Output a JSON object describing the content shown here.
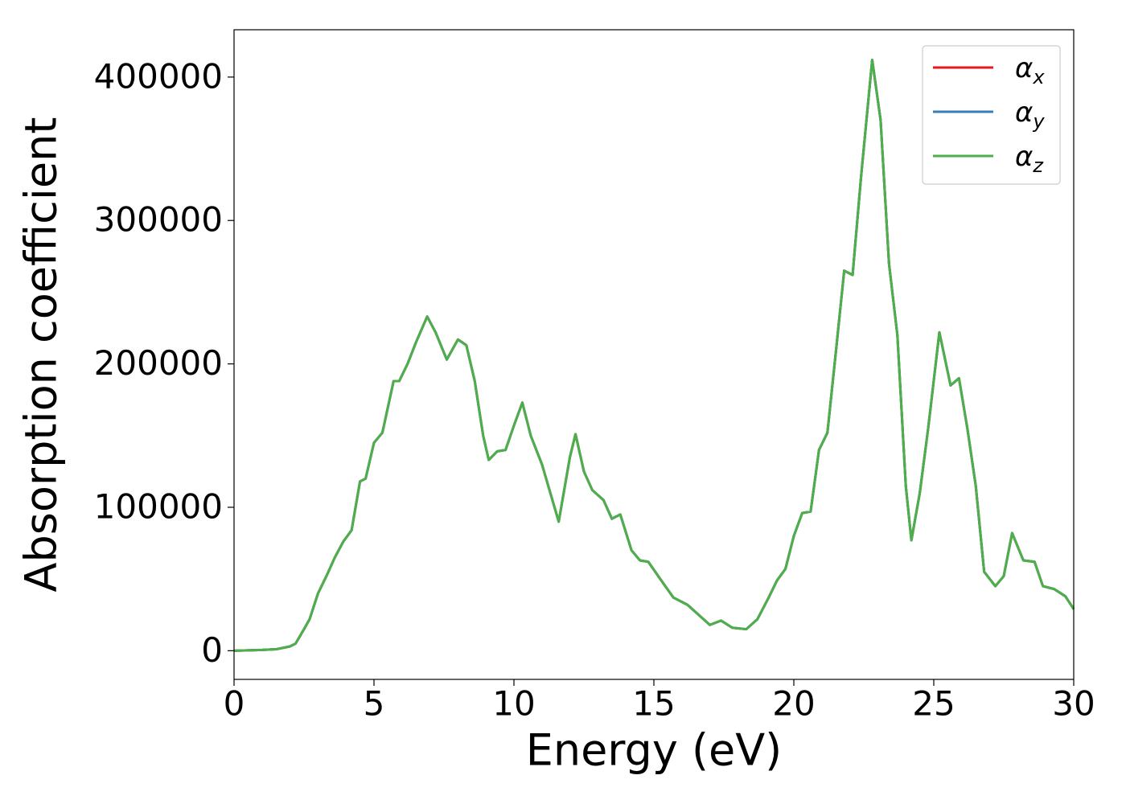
{
  "chart_data": {
    "type": "line",
    "x_label": "Energy (eV)",
    "y_label": "Absorption coefficient",
    "x": [
      0,
      1,
      1.5,
      2,
      2.2,
      2.5,
      2.7,
      3,
      3.3,
      3.6,
      3.9,
      4.2,
      4.5,
      4.7,
      5,
      5.3,
      5.7,
      5.9,
      6.2,
      6.5,
      6.9,
      7.2,
      7.6,
      8,
      8.3,
      8.6,
      8.9,
      9.1,
      9.4,
      9.7,
      10,
      10.3,
      10.6,
      11,
      11.3,
      11.6,
      12,
      12.2,
      12.5,
      12.8,
      13.2,
      13.5,
      13.8,
      14.2,
      14.5,
      14.8,
      15.3,
      15.7,
      16.2,
      16.6,
      17,
      17.4,
      17.8,
      18.3,
      18.7,
      19.1,
      19.4,
      19.7,
      20,
      20.3,
      20.6,
      20.9,
      21.2,
      21.5,
      21.8,
      22.1,
      22.4,
      22.8,
      23.1,
      23.4,
      23.7,
      24,
      24.2,
      24.5,
      24.8,
      25.2,
      25.6,
      25.9,
      26.2,
      26.5,
      26.8,
      27.2,
      27.5,
      27.8,
      28.2,
      28.6,
      28.9,
      29.3,
      29.7,
      30
    ],
    "series": [
      {
        "name": "αx",
        "color": "#e41a1c",
        "values": [
          0,
          500,
          1000,
          3000,
          5000,
          15000,
          22000,
          40000,
          52000,
          65000,
          76000,
          84000,
          118000,
          120000,
          145000,
          152000,
          188000,
          188000,
          200000,
          215000,
          233000,
          222000,
          203000,
          217000,
          213000,
          188000,
          150000,
          133000,
          139000,
          140000,
          157000,
          173000,
          150000,
          130000,
          110000,
          90000,
          135000,
          151000,
          125000,
          112000,
          105000,
          92000,
          95000,
          70000,
          63000,
          62000,
          48000,
          37000,
          32000,
          25000,
          18000,
          21000,
          16000,
          15000,
          22000,
          37000,
          49000,
          57000,
          80000,
          96000,
          97000,
          140000,
          152000,
          208000,
          265000,
          262000,
          330000,
          412000,
          370000,
          270000,
          220000,
          115000,
          77000,
          110000,
          155000,
          222000,
          185000,
          190000,
          155000,
          115000,
          55000,
          45000,
          52000,
          82000,
          63000,
          62000,
          45000,
          43000,
          38000,
          29000
        ]
      },
      {
        "name": "αy",
        "color": "#377eb8",
        "values": [
          0,
          500,
          1000,
          3000,
          5000,
          15000,
          22000,
          40000,
          52000,
          65000,
          76000,
          84000,
          118000,
          120000,
          145000,
          152000,
          188000,
          188000,
          200000,
          215000,
          233000,
          222000,
          203000,
          217000,
          213000,
          188000,
          150000,
          133000,
          139000,
          140000,
          157000,
          173000,
          150000,
          130000,
          110000,
          90000,
          135000,
          151000,
          125000,
          112000,
          105000,
          92000,
          95000,
          70000,
          63000,
          62000,
          48000,
          37000,
          32000,
          25000,
          18000,
          21000,
          16000,
          15000,
          22000,
          37000,
          49000,
          57000,
          80000,
          96000,
          97000,
          140000,
          152000,
          208000,
          265000,
          262000,
          330000,
          412000,
          370000,
          270000,
          220000,
          115000,
          77000,
          110000,
          155000,
          222000,
          185000,
          190000,
          155000,
          115000,
          55000,
          45000,
          52000,
          82000,
          63000,
          62000,
          45000,
          43000,
          38000,
          29000
        ]
      },
      {
        "name": "αz",
        "color": "#4daf4a",
        "values": [
          0,
          500,
          1000,
          3000,
          5000,
          15000,
          22000,
          40000,
          52000,
          65000,
          76000,
          84000,
          118000,
          120000,
          145000,
          152000,
          188000,
          188000,
          200000,
          215000,
          233000,
          222000,
          203000,
          217000,
          213000,
          188000,
          150000,
          133000,
          139000,
          140000,
          157000,
          173000,
          150000,
          130000,
          110000,
          90000,
          135000,
          151000,
          125000,
          112000,
          105000,
          92000,
          95000,
          70000,
          63000,
          62000,
          48000,
          37000,
          32000,
          25000,
          18000,
          21000,
          16000,
          15000,
          22000,
          37000,
          49000,
          57000,
          80000,
          96000,
          97000,
          140000,
          152000,
          208000,
          265000,
          262000,
          330000,
          412000,
          370000,
          270000,
          220000,
          115000,
          77000,
          110000,
          155000,
          222000,
          185000,
          190000,
          155000,
          115000,
          55000,
          45000,
          52000,
          82000,
          63000,
          62000,
          45000,
          43000,
          38000,
          29000
        ]
      }
    ],
    "xlim": [
      0,
      30
    ],
    "xticks": [
      0,
      5,
      10,
      15,
      20,
      25,
      30
    ],
    "ylim": [
      -20000,
      433000
    ],
    "yticks": [
      0,
      100000,
      200000,
      300000,
      400000
    ],
    "grid": false,
    "legend": "upper right"
  }
}
